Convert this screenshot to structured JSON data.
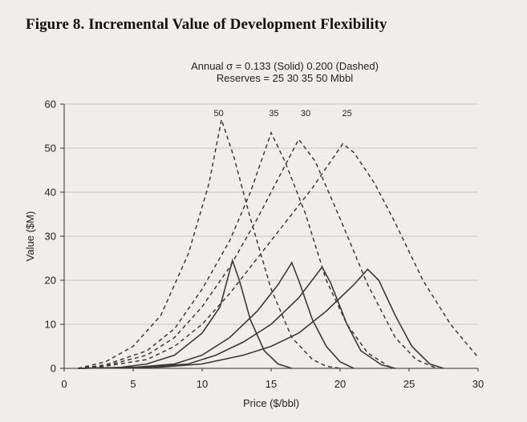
{
  "figure_title": "Figure 8. Incremental Value of Development Flexibility",
  "subtitle": {
    "line1": "Annual σ = 0.133 (Solid)  0.200 (Dashed)",
    "line2": "Reserves = 25 30 35 50 Mbbl"
  },
  "chart_data": {
    "type": "line",
    "title": "Annual σ = 0.133 (Solid)  0.200 (Dashed) / Reserves = 25 30 35 50 Mbbl",
    "xlabel": "Price ($/bbl)",
    "ylabel": "Value ($M)",
    "xlim": [
      0,
      30
    ],
    "ylim": [
      0,
      60
    ],
    "xticks": [
      0,
      5,
      10,
      15,
      20,
      25,
      30
    ],
    "yticks": [
      0,
      10,
      20,
      30,
      40,
      50,
      60
    ],
    "grid": "horizontal",
    "series": [
      {
        "name": "",
        "style": "dashed",
        "peak_label": "50",
        "label_x": 11.2,
        "points": [
          [
            1,
            0
          ],
          [
            3,
            1.5
          ],
          [
            5,
            5
          ],
          [
            7,
            12
          ],
          [
            9,
            26
          ],
          [
            10.5,
            42
          ],
          [
            11.4,
            56.5
          ],
          [
            12.3,
            48
          ],
          [
            13.5,
            34
          ],
          [
            15,
            18
          ],
          [
            16.5,
            7
          ],
          [
            18,
            2
          ],
          [
            19,
            0.5
          ],
          [
            20,
            0
          ]
        ]
      },
      {
        "name": "",
        "style": "dashed",
        "peak_label": "35",
        "label_x": 15.2,
        "points": [
          [
            1,
            0
          ],
          [
            3,
            0.8
          ],
          [
            6,
            4
          ],
          [
            8,
            9
          ],
          [
            10,
            18
          ],
          [
            12,
            29
          ],
          [
            13.5,
            40
          ],
          [
            15,
            53.5
          ],
          [
            16,
            47
          ],
          [
            17.5,
            35
          ],
          [
            19,
            20
          ],
          [
            20.5,
            10
          ],
          [
            22,
            3.5
          ],
          [
            23.5,
            0.5
          ],
          [
            24,
            0
          ]
        ]
      },
      {
        "name": "",
        "style": "dashed",
        "peak_label": "30",
        "label_x": 17.5,
        "points": [
          [
            1,
            0
          ],
          [
            3,
            0.6
          ],
          [
            6,
            3
          ],
          [
            8,
            7
          ],
          [
            10,
            14
          ],
          [
            12,
            23
          ],
          [
            14,
            34
          ],
          [
            15.5,
            43
          ],
          [
            17,
            52
          ],
          [
            18.2,
            47
          ],
          [
            20,
            34
          ],
          [
            22,
            19
          ],
          [
            24,
            7
          ],
          [
            25.5,
            2
          ],
          [
            27,
            0
          ]
        ]
      },
      {
        "name": "",
        "style": "dashed",
        "peak_label": "25",
        "label_x": 20.5,
        "points": [
          [
            1,
            0
          ],
          [
            3,
            0.5
          ],
          [
            6,
            2
          ],
          [
            8,
            5
          ],
          [
            10,
            10
          ],
          [
            12,
            17
          ],
          [
            14,
            25
          ],
          [
            16,
            33
          ],
          [
            18,
            41
          ],
          [
            20.2,
            51
          ],
          [
            21,
            49
          ],
          [
            22.5,
            42
          ],
          [
            24,
            33
          ],
          [
            26,
            20
          ],
          [
            28,
            10
          ],
          [
            30,
            2.5
          ]
        ]
      },
      {
        "name": "",
        "style": "solid",
        "points": [
          [
            1,
            0
          ],
          [
            4,
            0.2
          ],
          [
            6,
            1
          ],
          [
            8,
            3
          ],
          [
            10,
            8
          ],
          [
            11.3,
            14
          ],
          [
            12.2,
            24.5
          ],
          [
            12.7,
            20
          ],
          [
            13.5,
            11
          ],
          [
            14.5,
            4
          ],
          [
            15.5,
            1
          ],
          [
            16.5,
            0
          ]
        ]
      },
      {
        "name": "",
        "style": "solid",
        "points": [
          [
            1,
            0
          ],
          [
            5,
            0.2
          ],
          [
            8,
            1
          ],
          [
            10,
            3
          ],
          [
            12,
            7
          ],
          [
            14,
            13
          ],
          [
            15.5,
            19
          ],
          [
            16.5,
            24
          ],
          [
            17,
            20
          ],
          [
            18,
            11
          ],
          [
            19,
            5
          ],
          [
            20,
            1.5
          ],
          [
            21,
            0
          ]
        ]
      },
      {
        "name": "",
        "style": "solid",
        "points": [
          [
            1,
            0
          ],
          [
            6,
            0.3
          ],
          [
            9,
            1
          ],
          [
            11,
            3
          ],
          [
            13,
            6
          ],
          [
            15,
            10
          ],
          [
            17,
            16
          ],
          [
            18.7,
            23
          ],
          [
            19.3,
            19.5
          ],
          [
            20.5,
            10
          ],
          [
            21.5,
            4
          ],
          [
            23,
            0.8
          ],
          [
            24,
            0
          ]
        ]
      },
      {
        "name": "",
        "style": "solid",
        "points": [
          [
            1,
            0
          ],
          [
            7,
            0.3
          ],
          [
            10,
            1
          ],
          [
            13,
            3
          ],
          [
            15,
            5
          ],
          [
            17,
            8
          ],
          [
            19,
            13
          ],
          [
            21,
            19
          ],
          [
            22,
            22.5
          ],
          [
            22.8,
            20
          ],
          [
            24,
            12
          ],
          [
            25.2,
            5
          ],
          [
            26.5,
            1
          ],
          [
            27.5,
            0
          ]
        ]
      }
    ]
  }
}
